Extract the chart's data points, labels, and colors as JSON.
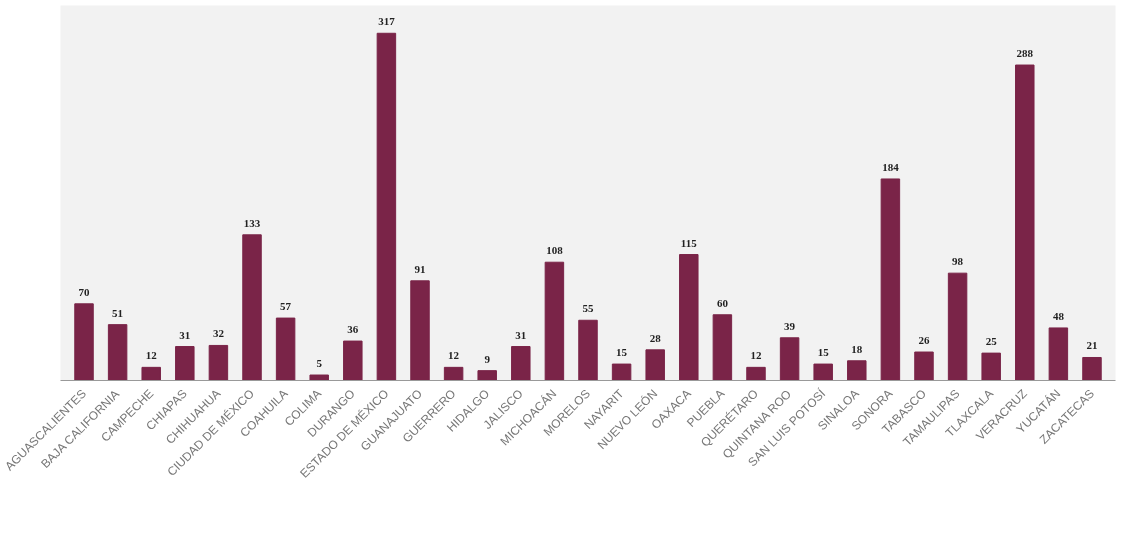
{
  "chart_data": {
    "type": "bar",
    "categories": [
      "AGUASCALIENTES",
      "BAJA CALIFORNIA",
      "CAMPECHE",
      "CHIAPAS",
      "CHIHUAHUA",
      "CIUDAD DE MÉXICO",
      "COAHUILA",
      "COLIMA",
      "DURANGO",
      "ESTADO DE MÉXICO",
      "GUANAJUATO",
      "GUERRERO",
      "HIDALGO",
      "JALISCO",
      "MICHOACÁN",
      "MORELOS",
      "NAYARIT",
      "NUEVO LEÓN",
      "OAXACA",
      "PUEBLA",
      "QUERÉTARO",
      "QUINTANA ROO",
      "SAN LUIS POTOSÍ",
      "SINALOA",
      "SONORA",
      "TABASCO",
      "TAMAULIPAS",
      "TLAXCALA",
      "VERACRUZ",
      "YUCATÁN",
      "ZACATECAS"
    ],
    "values": [
      70,
      51,
      12,
      31,
      32,
      133,
      57,
      5,
      36,
      317,
      91,
      12,
      9,
      31,
      108,
      55,
      15,
      28,
      115,
      60,
      12,
      39,
      15,
      18,
      184,
      26,
      98,
      25,
      288,
      48,
      21
    ],
    "color": "#7a2448",
    "data_labels": true,
    "grid": false
  }
}
